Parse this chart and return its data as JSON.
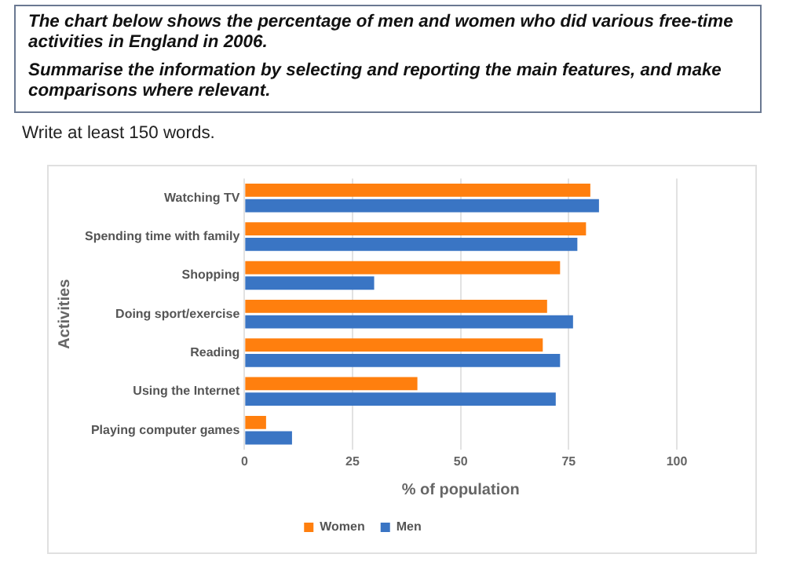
{
  "chart_data": {
    "type": "bar",
    "orientation": "horizontal",
    "title": "The chart below shows the percentage of men and women who did various free-time activities in England in 2006.",
    "subtitle": "Summarise the information by selecting and reporting the main features, and make comparisons where relevant.",
    "annotations": [
      "Write at least 150 words."
    ],
    "categories": [
      "Watching TV",
      "Spending time with family",
      "Shopping",
      "Doing sport/exercise",
      "Reading",
      "Using the Internet",
      "Playing computer games"
    ],
    "series": [
      {
        "name": "Women",
        "color": "#ff7f0e",
        "values": [
          80,
          79,
          73,
          70,
          69,
          40,
          5
        ]
      },
      {
        "name": "Men",
        "color": "#3a75c4",
        "values": [
          82,
          77,
          30,
          76,
          73,
          72,
          11
        ]
      }
    ],
    "xlabel": "% of population",
    "ylabel": "Activities",
    "xlim": [
      0,
      100
    ],
    "xticks": [
      0,
      25,
      50,
      75,
      100
    ],
    "grid": "x",
    "legend": "bottom"
  }
}
